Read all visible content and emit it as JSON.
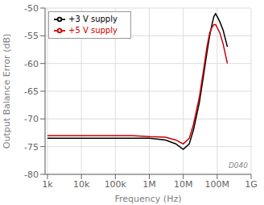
{
  "chart_data": {
    "type": "line",
    "xlabel": "Frequency (Hz)",
    "ylabel": "Output Balance Error (dB)",
    "log": "x",
    "grid": true,
    "legend": "upper left",
    "annotations": [
      "D040"
    ],
    "xlim": [
      850,
      1000000000
    ],
    "xticks": [
      {
        "value": 1000,
        "label": "1k"
      },
      {
        "value": 10000,
        "label": "10k"
      },
      {
        "value": 100000,
        "label": "100k"
      },
      {
        "value": 1000000,
        "label": "1M"
      },
      {
        "value": 10000000,
        "label": "10M"
      },
      {
        "value": 100000000,
        "label": "100M"
      },
      {
        "value": 1000000000,
        "label": "1G"
      }
    ],
    "ylim": [
      -80,
      -50
    ],
    "yticks": [
      -80,
      -75,
      -70,
      -65,
      -60,
      -55,
      -50
    ],
    "x": [
      1000,
      3000,
      10000,
      30000,
      100000,
      300000,
      1000000,
      3000000,
      6000000,
      10000000,
      15000000,
      20000000,
      30000000,
      40000000,
      50000000,
      60000000,
      70000000,
      80000000,
      90000000,
      100000000,
      120000000,
      150000000,
      200000000
    ],
    "series": [
      {
        "name": "+3 V supply",
        "color": "#000000",
        "values": [
          -73.5,
          -73.5,
          -73.5,
          -73.5,
          -73.5,
          -73.5,
          -73.5,
          -73.8,
          -74.5,
          -75.5,
          -74.5,
          -72.0,
          -67.0,
          -62.0,
          -58.0,
          -55.0,
          -53.0,
          -51.5,
          -51.0,
          -51.5,
          -52.5,
          -54.0,
          -57.0
        ]
      },
      {
        "name": "+5 V supply",
        "color": "#cc0000",
        "values": [
          -73.0,
          -73.0,
          -73.0,
          -73.0,
          -73.0,
          -73.0,
          -73.2,
          -73.3,
          -73.8,
          -74.5,
          -73.5,
          -71.0,
          -66.0,
          -61.0,
          -57.0,
          -54.5,
          -53.5,
          -53.0,
          -53.0,
          -53.5,
          -54.5,
          -56.5,
          -60.0
        ]
      }
    ]
  }
}
